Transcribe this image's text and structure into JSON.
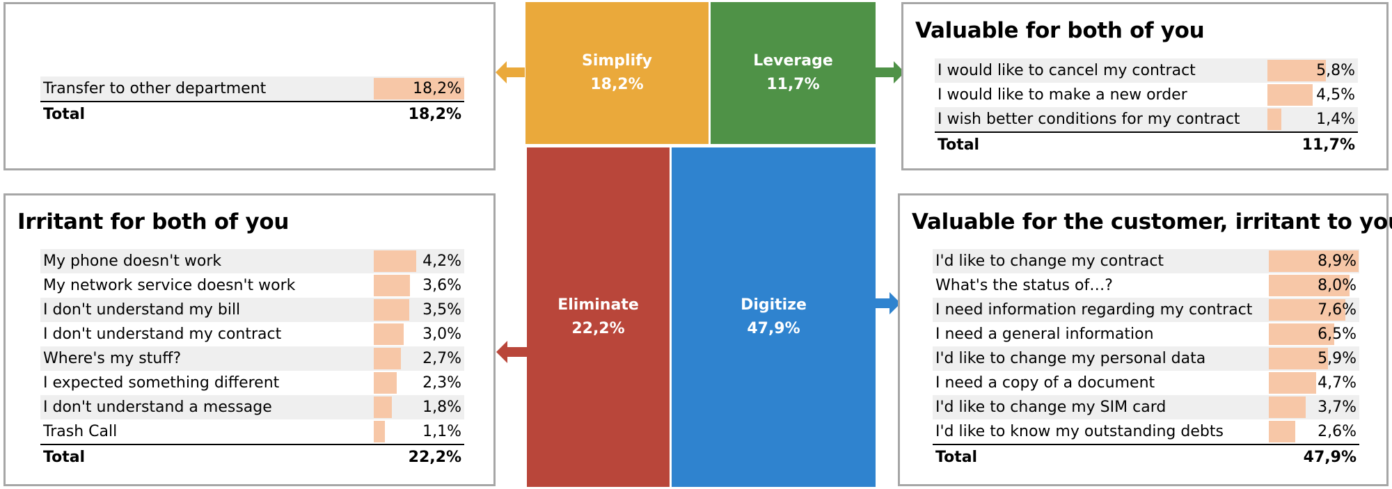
{
  "quadrants": {
    "simplify": {
      "label": "Simplify",
      "value": "18,2%",
      "color": "#eaa93b"
    },
    "leverage": {
      "label": "Leverage",
      "value": "11,7%",
      "color": "#4f9247"
    },
    "eliminate": {
      "label": "Eliminate",
      "value": "22,2%",
      "color": "#b9463a"
    },
    "digitize": {
      "label": "Digitize",
      "value": "47,9%",
      "color": "#2f83cf"
    }
  },
  "panels": {
    "simplify": {
      "title": "",
      "rows": [
        {
          "label": "Transfer to other department",
          "value": "18,2%",
          "pct": 18.2
        }
      ],
      "total_label": "Total",
      "total_value": "18,2%"
    },
    "leverage": {
      "title": "Valuable for both of you",
      "rows": [
        {
          "label": "I would like to cancel my contract",
          "value": "5,8%",
          "pct": 5.8
        },
        {
          "label": "I would like to make a new order",
          "value": "4,5%",
          "pct": 4.5
        },
        {
          "label": "I wish better conditions for my contract",
          "value": "1,4%",
          "pct": 1.4
        }
      ],
      "total_label": "Total",
      "total_value": "11,7%"
    },
    "eliminate": {
      "title": "Irritant for both of you",
      "rows": [
        {
          "label": "My phone doesn't work",
          "value": "4,2%",
          "pct": 4.2
        },
        {
          "label": "My network service doesn't work",
          "value": "3,6%",
          "pct": 3.6
        },
        {
          "label": "I don't understand my bill",
          "value": "3,5%",
          "pct": 3.5
        },
        {
          "label": "I don't understand my contract",
          "value": "3,0%",
          "pct": 3.0
        },
        {
          "label": "Where's my stuff?",
          "value": "2,7%",
          "pct": 2.7
        },
        {
          "label": "I expected something different",
          "value": "2,3%",
          "pct": 2.3
        },
        {
          "label": "I don't understand a message",
          "value": "1,8%",
          "pct": 1.8
        },
        {
          "label": "Trash Call",
          "value": "1,1%",
          "pct": 1.1
        }
      ],
      "total_label": "Total",
      "total_value": "22,2%"
    },
    "digitize": {
      "title": "Valuable for the customer, irritant to you",
      "rows": [
        {
          "label": "I'd like to change my contract",
          "value": "8,9%",
          "pct": 8.9
        },
        {
          "label": "What's the status of…?",
          "value": "8,0%",
          "pct": 8.0
        },
        {
          "label": "I need information regarding my contract",
          "value": "7,6%",
          "pct": 7.6
        },
        {
          "label": "I need a general information",
          "value": "6,5%",
          "pct": 6.5
        },
        {
          "label": "I'd like to change my personal data",
          "value": "5,9%",
          "pct": 5.9
        },
        {
          "label": "I need a copy of a document",
          "value": "4,7%",
          "pct": 4.7
        },
        {
          "label": "I'd like to change my SIM card",
          "value": "3,7%",
          "pct": 3.7
        },
        {
          "label": "I'd like to know my outstanding debts",
          "value": "2,6%",
          "pct": 2.6
        }
      ],
      "total_label": "Total",
      "total_value": "47,9%"
    }
  },
  "bar_color": "#f7c7a7"
}
